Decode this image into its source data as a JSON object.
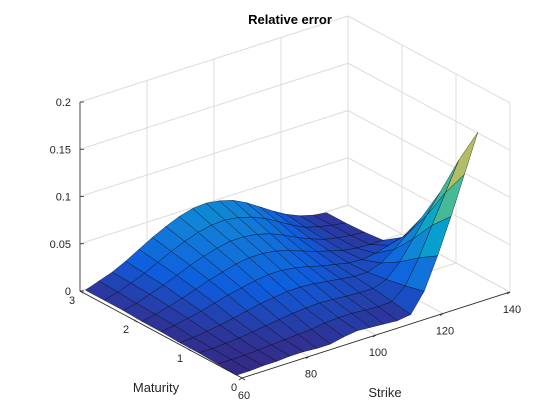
{
  "chart_data": {
    "type": "surface",
    "title": "Relative error",
    "xlabel": "Strike",
    "ylabel": "Maturity",
    "zlabel": "",
    "xlim": [
      60,
      140
    ],
    "ylim": [
      0,
      3
    ],
    "zlim": [
      0,
      0.2
    ],
    "xticks": [
      60,
      80,
      100,
      120,
      140
    ],
    "yticks": [
      0,
      1,
      2,
      3
    ],
    "zticks": [
      0,
      0.05,
      0.1,
      0.15,
      0.2
    ],
    "xtick_labels": [
      "60",
      "80",
      "100",
      "120",
      "140"
    ],
    "ytick_labels": [
      "0",
      "1",
      "2",
      "3"
    ],
    "ztick_labels": [
      "0",
      "0.05",
      "0.1",
      "0.15",
      "0.2"
    ],
    "grid": true,
    "colormap": "parula",
    "strike": [
      60,
      64,
      68,
      72,
      76,
      80,
      84,
      88,
      92,
      96,
      100,
      104,
      108,
      112,
      116,
      120,
      124,
      128,
      132
    ],
    "maturity": [
      0.1,
      0.45,
      0.8,
      1.15,
      1.5,
      1.85,
      2.2,
      2.55,
      2.9
    ],
    "z": [
      [
        0.0,
        0.0,
        0.001,
        0.001,
        0.002,
        0.002,
        0.001,
        0.001,
        0.004,
        0.006,
        0.005,
        0.004,
        0.003,
        0.005,
        0.025,
        0.058,
        0.095,
        0.135,
        0.175
      ],
      [
        0.001,
        0.001,
        0.001,
        0.002,
        0.003,
        0.004,
        0.005,
        0.006,
        0.008,
        0.009,
        0.009,
        0.008,
        0.007,
        0.008,
        0.02,
        0.045,
        0.075,
        0.105,
        0.135
      ],
      [
        0.002,
        0.002,
        0.003,
        0.004,
        0.006,
        0.008,
        0.01,
        0.012,
        0.013,
        0.014,
        0.013,
        0.012,
        0.011,
        0.011,
        0.016,
        0.03,
        0.05,
        0.07,
        0.09
      ],
      [
        0.002,
        0.003,
        0.005,
        0.007,
        0.01,
        0.013,
        0.016,
        0.018,
        0.02,
        0.02,
        0.019,
        0.017,
        0.015,
        0.013,
        0.013,
        0.018,
        0.028,
        0.04,
        0.052
      ],
      [
        0.003,
        0.005,
        0.008,
        0.011,
        0.015,
        0.019,
        0.022,
        0.025,
        0.027,
        0.027,
        0.025,
        0.022,
        0.018,
        0.015,
        0.012,
        0.011,
        0.013,
        0.017,
        0.021
      ],
      [
        0.003,
        0.006,
        0.01,
        0.014,
        0.019,
        0.024,
        0.028,
        0.032,
        0.034,
        0.034,
        0.032,
        0.028,
        0.023,
        0.018,
        0.014,
        0.01,
        0.008,
        0.007,
        0.007
      ],
      [
        0.004,
        0.007,
        0.012,
        0.017,
        0.023,
        0.029,
        0.034,
        0.038,
        0.041,
        0.041,
        0.039,
        0.035,
        0.029,
        0.022,
        0.016,
        0.011,
        0.008,
        0.006,
        0.005
      ],
      [
        0.004,
        0.008,
        0.013,
        0.019,
        0.026,
        0.033,
        0.039,
        0.044,
        0.047,
        0.048,
        0.046,
        0.042,
        0.036,
        0.028,
        0.02,
        0.013,
        0.009,
        0.006,
        0.004
      ],
      [
        0.004,
        0.009,
        0.014,
        0.021,
        0.029,
        0.037,
        0.044,
        0.05,
        0.054,
        0.055,
        0.053,
        0.049,
        0.042,
        0.033,
        0.024,
        0.016,
        0.01,
        0.006,
        0.004
      ]
    ]
  }
}
